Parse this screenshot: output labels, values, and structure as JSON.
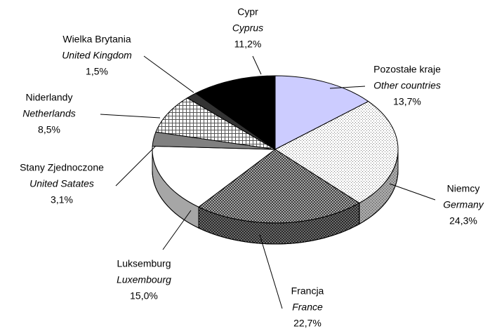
{
  "chart_data": {
    "type": "pie3d",
    "categories": [
      "Pozostałe kraje",
      "Niemcy",
      "Francja",
      "Luksemburg",
      "Stany Zjednoczone",
      "Niderlandy",
      "Wielka Brytania",
      "Cypr"
    ],
    "categories_en": [
      "Other countries",
      "Germany",
      "France",
      "Luxembourg",
      "United Satates",
      "Netherlands",
      "United Kingdom",
      "Cyprus"
    ],
    "values": [
      13.7,
      24.3,
      22.7,
      15.0,
      3.1,
      8.5,
      1.5,
      11.2
    ],
    "value_labels": [
      "13,7%",
      "24,3%",
      "22,7%",
      "15,0%",
      "3,1%",
      "8,5%",
      "1,5%",
      "11,2%"
    ],
    "colors": [
      "#ccccff",
      "#ffffff",
      "#8c8c8c",
      "#ffffff",
      "#808080",
      "#ffffff",
      "#333333",
      "#000000"
    ]
  }
}
